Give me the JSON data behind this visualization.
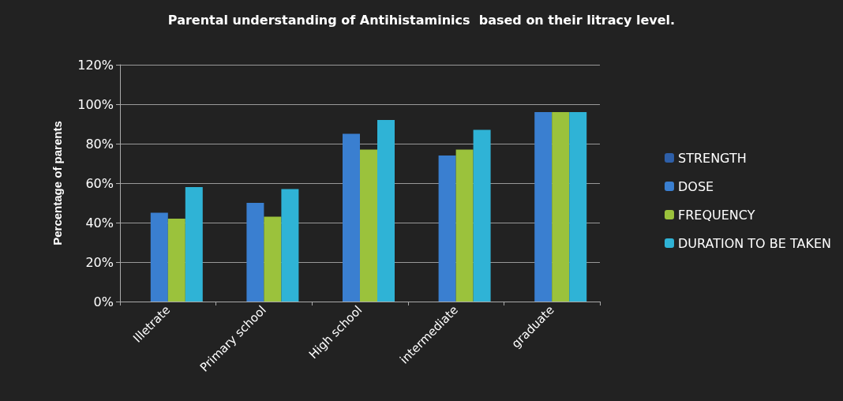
{
  "chart_data": {
    "type": "bar",
    "title": "Parental understanding of Antihistaminics  based on their litracy level.",
    "ylabel": "Percentage of parents",
    "categories": [
      "Illetrate",
      "Primary school",
      "High school",
      "intermediate",
      "graduate"
    ],
    "series": [
      {
        "name": "STRENGTH",
        "color": "#2e5fa8",
        "values": [
          null,
          null,
          null,
          null,
          null
        ]
      },
      {
        "name": "DOSE",
        "color": "#3a7fd0",
        "values": [
          45,
          50,
          85,
          74,
          96
        ]
      },
      {
        "name": "FREQUENCY",
        "color": "#9bc23c",
        "values": [
          42,
          43,
          77,
          77,
          96
        ]
      },
      {
        "name": "DURATION TO BE TAKEN",
        "color": "#2fb3d6",
        "values": [
          58,
          57,
          92,
          87,
          96
        ]
      }
    ],
    "ylim": [
      0,
      120
    ],
    "yticks": [
      {
        "value": 0,
        "label": "0%"
      },
      {
        "value": 20,
        "label": "20%"
      },
      {
        "value": 40,
        "label": "40%"
      },
      {
        "value": 60,
        "label": "60%"
      },
      {
        "value": 80,
        "label": "80%"
      },
      {
        "value": 100,
        "label": "100%"
      },
      {
        "value": 120,
        "label": "120%"
      }
    ],
    "grid": "y",
    "legend": "right"
  }
}
